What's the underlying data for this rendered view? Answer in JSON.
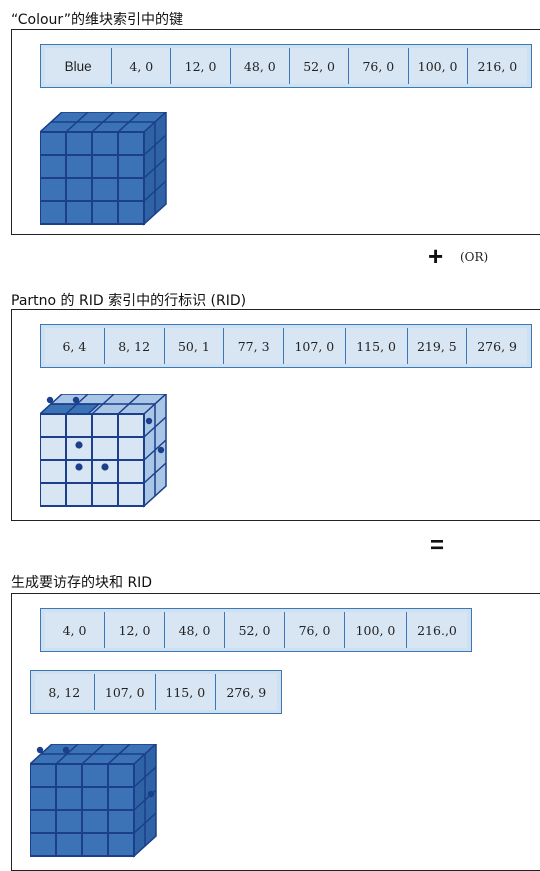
{
  "section1": {
    "title": "“Colour”的维块索引中的键",
    "cells": [
      "Blue",
      "4, 0",
      "12, 0",
      "48, 0",
      "52, 0",
      "76, 0",
      "100, 0",
      "216, 0"
    ]
  },
  "operator_or": {
    "symbol": "+",
    "label": "(OR)"
  },
  "section2": {
    "title": "Partno 的 RID 索引中的行标识 (RID)",
    "cells": [
      "6, 4",
      "8, 12",
      "50, 1",
      "77, 3",
      "107, 0",
      "115, 0",
      "219, 5",
      "276, 9"
    ]
  },
  "operator_eq": {
    "symbol": "="
  },
  "section3": {
    "title": "生成要访存的块和 RID",
    "row1": [
      "4, 0",
      "12, 0",
      "48, 0",
      "52, 0",
      "76, 0",
      "100, 0",
      "216.,0"
    ],
    "row2": [
      "8, 12",
      "107, 0",
      "115, 0",
      "276, 9"
    ]
  },
  "colors": {
    "cube_fill": "#3b73b6",
    "cube_light": "#a9c6e6",
    "cube_line": "#1b3f8a",
    "cell_fill": "#d8e6f4",
    "cell_border": "#3a78b8"
  }
}
